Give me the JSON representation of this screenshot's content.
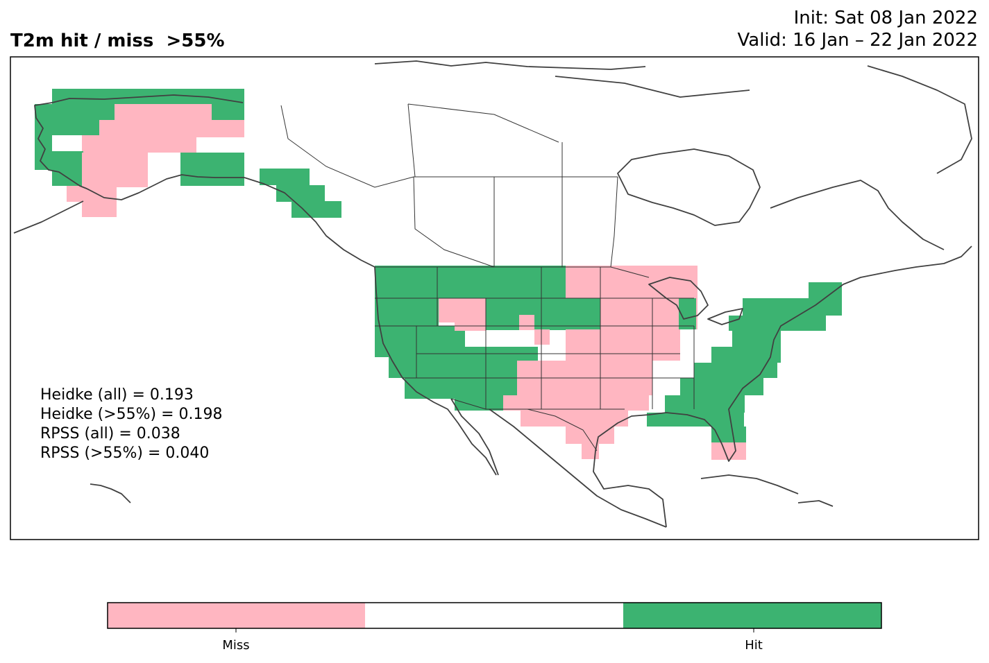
{
  "title": {
    "left": "T2m hit / miss  >55%",
    "init": "Init: Sat 08 Jan 2022",
    "valid": "Valid: 16 Jan – 22 Jan 2022"
  },
  "stats": [
    "Heidke (all) = 0.193",
    "Heidke (>55%) = 0.198",
    "RPSS (all) = 0.038",
    "RPSS (>55%) = 0.040"
  ],
  "legend": {
    "categories": [
      "Miss",
      "",
      "Hit"
    ],
    "labels": {
      "miss": "Miss",
      "hit": "Hit"
    },
    "colors": {
      "miss": "#ffb6c1",
      "neutral": "#ffffff",
      "hit": "#3cb371"
    }
  },
  "colors": {
    "coastline": "#404040",
    "frame": "#000000"
  }
}
